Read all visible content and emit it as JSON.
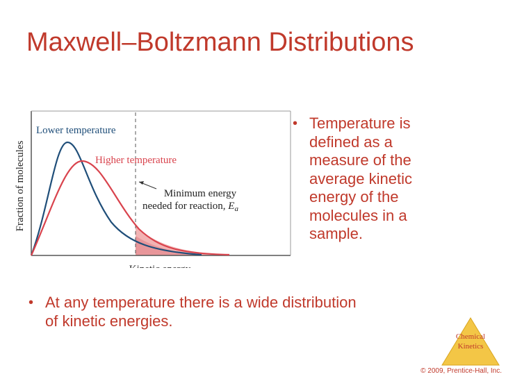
{
  "title": "Maxwell–Boltzmann Distributions",
  "figure": {
    "y_label": "Fraction of molecules",
    "x_label": "Kinetic energy",
    "curves": [
      "Lower temperature",
      "Higher temperature"
    ],
    "annotation_lines": [
      "Minimum energy",
      "needed for reaction,"
    ],
    "annotation_symbol": "E",
    "annotation_subscript": "a"
  },
  "bullets": [
    "Temperature is defined as a measure of the average kinetic energy of the molecules in a sample.",
    "At any temperature there is a wide distribution of kinetic energies."
  ],
  "badge": [
    "Chemical",
    "Kinetics"
  ],
  "copyright": "© 2009, Prentice-Hall, Inc."
}
